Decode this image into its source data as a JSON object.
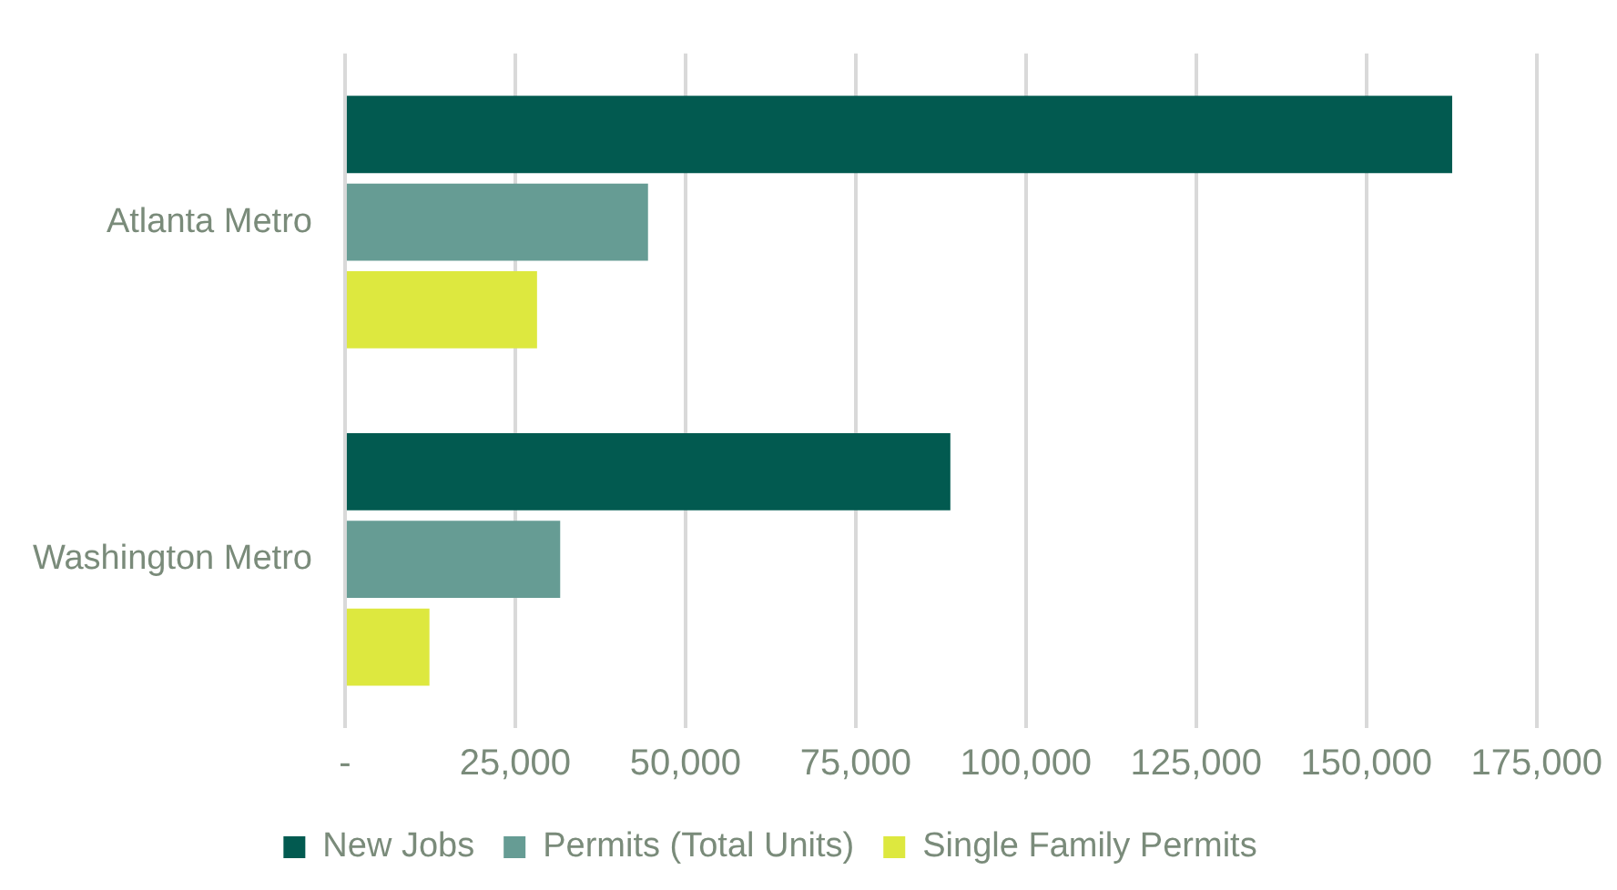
{
  "chart_data": {
    "type": "bar",
    "orientation": "horizontal",
    "categories": [
      "Atlanta Metro",
      "Washington Metro"
    ],
    "series": [
      {
        "name": "New Jobs",
        "color": "#025a50",
        "values": [
          162600,
          88900
        ]
      },
      {
        "name": "Permits (Total Units)",
        "color": "#669c94",
        "values": [
          44500,
          31600
        ]
      },
      {
        "name": "Single Family Permits",
        "color": "#dde83f",
        "values": [
          28200,
          12400
        ]
      }
    ],
    "xlim": [
      0,
      175000
    ],
    "xticks": [
      {
        "value": 0,
        "label": "-"
      },
      {
        "value": 25000,
        "label": "25,000"
      },
      {
        "value": 50000,
        "label": "50,000"
      },
      {
        "value": 75000,
        "label": "75,000"
      },
      {
        "value": 100000,
        "label": "100,000"
      },
      {
        "value": 125000,
        "label": "125,000"
      },
      {
        "value": 150000,
        "label": "150,000"
      },
      {
        "value": 175000,
        "label": "175,000"
      }
    ],
    "grid": "x",
    "legend": "bottom"
  }
}
